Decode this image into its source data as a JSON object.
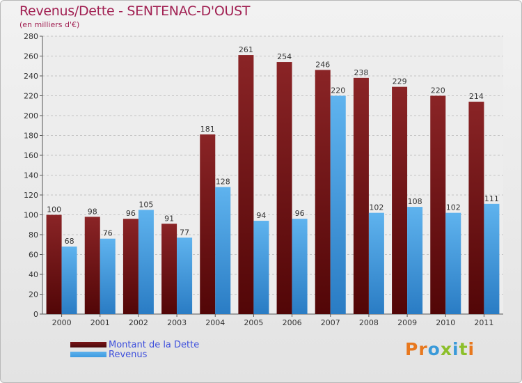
{
  "title": "Revenus/Dette - SENTENAC-D'OUST",
  "subtitle": "(en milliers d'€)",
  "logo_text": "Proxiti",
  "colors": {
    "dette": "#7a1518",
    "revenus": "#3d9be0",
    "title": "#a12052",
    "legend_text": "#3d4fdc"
  },
  "chart_data": {
    "type": "bar",
    "title": "Revenus/Dette - SENTENAC-D'OUST",
    "ylabel": "(en milliers d'€)",
    "xlabel": "",
    "ylim": [
      0,
      280
    ],
    "yticks": [
      0,
      20,
      40,
      60,
      80,
      100,
      120,
      140,
      160,
      180,
      200,
      220,
      240,
      260,
      280
    ],
    "categories": [
      "2000",
      "2001",
      "2002",
      "2003",
      "2004",
      "2005",
      "2006",
      "2007",
      "2008",
      "2009",
      "2010",
      "2011"
    ],
    "series": [
      {
        "name": "Montant de la Dette",
        "values": [
          100,
          98,
          96,
          91,
          181,
          261,
          254,
          246,
          238,
          229,
          220,
          214
        ]
      },
      {
        "name": "Revenus",
        "values": [
          68,
          76,
          105,
          77,
          128,
          94,
          96,
          220,
          102,
          108,
          102,
          111
        ]
      }
    ],
    "grid": true,
    "legend": "bottom-left"
  }
}
